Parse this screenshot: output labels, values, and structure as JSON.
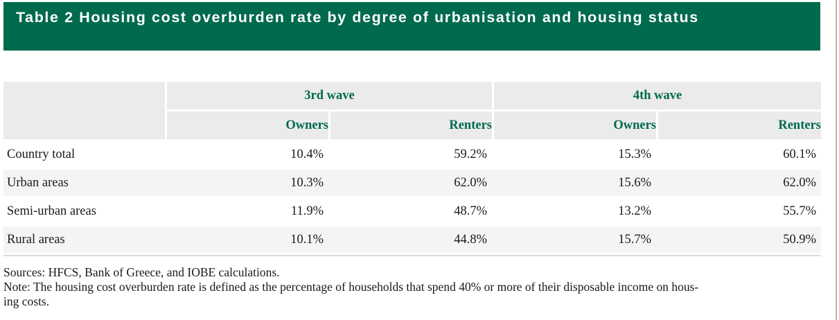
{
  "title": "Table 2 Housing cost overburden rate by degree of urbanisation and housing status",
  "table": {
    "waves": [
      "3rd wave",
      "4th wave"
    ],
    "subheaders": [
      "Owners",
      "Renters",
      "Owners",
      "Renters"
    ],
    "rows": [
      {
        "label": "Country total",
        "values": [
          "10.4%",
          "59.2%",
          "15.3%",
          "60.1%"
        ]
      },
      {
        "label": "Urban areas",
        "values": [
          "10.3%",
          "62.0%",
          "15.6%",
          "62.0%"
        ]
      },
      {
        "label": "Semi-urban areas",
        "values": [
          "11.9%",
          "48.7%",
          "13.2%",
          "55.7%"
        ]
      },
      {
        "label": "Rural areas",
        "values": [
          "10.1%",
          "44.8%",
          "15.7%",
          "50.9%"
        ]
      }
    ]
  },
  "sources": "Sources: HFCS, Bank of Greece, and IOBE calculations.",
  "note_line1": "Note: The housing cost overburden rate is defined as the percentage of households that spend 40% or more of their disposable income on hous-",
  "note_line2": "ing costs."
}
